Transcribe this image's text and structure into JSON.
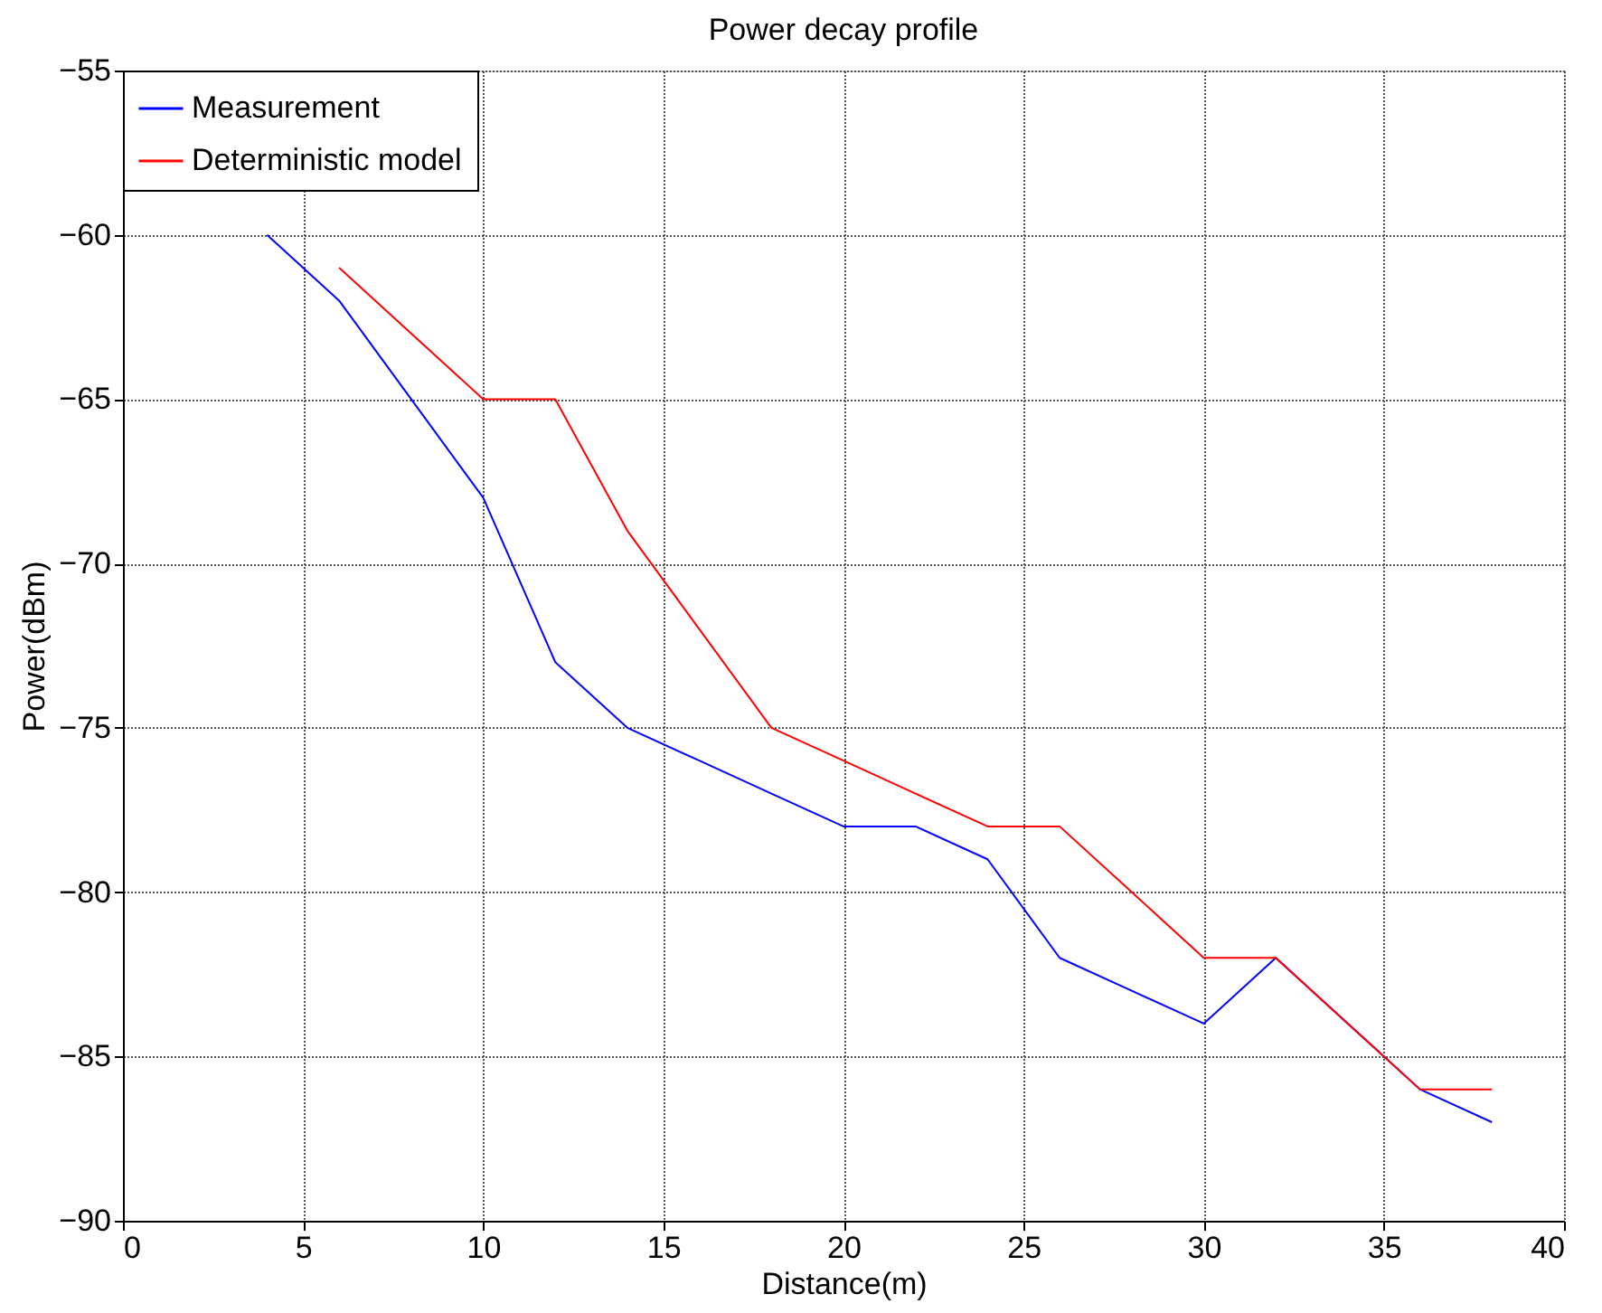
{
  "chart_data": {
    "type": "line",
    "title": "Power decay profile",
    "xlabel": "Distance(m)",
    "ylabel": "Power(dBm)",
    "xlim": [
      0,
      40
    ],
    "xticks": [
      0,
      5,
      10,
      15,
      20,
      25,
      30,
      35,
      40
    ],
    "ylim": [
      -90,
      -55
    ],
    "yticks": [
      -90,
      -85,
      -80,
      -75,
      -70,
      -65,
      -60,
      -55
    ],
    "grid": true,
    "legend": "top left",
    "line_style": "solid",
    "marker": "none",
    "series": [
      {
        "name": "Measurement",
        "color": "#0000ff",
        "x": [
          4,
          6,
          8,
          10,
          12,
          14,
          16,
          18,
          20,
          22,
          24,
          26,
          28,
          30,
          32,
          34,
          36,
          38
        ],
        "values": [
          -60,
          -62,
          -65,
          -68,
          -73,
          -75,
          -76,
          -77,
          -78,
          -78,
          -79,
          -82,
          -83,
          -84,
          -82,
          -84,
          -86,
          -87
        ]
      },
      {
        "name": "Deterministic model",
        "color": "#ff0000",
        "x": [
          6,
          8,
          10,
          12,
          14,
          16,
          18,
          20,
          22,
          24,
          26,
          28,
          30,
          32,
          34,
          36,
          38
        ],
        "values": [
          -61,
          -63,
          -65,
          -65,
          -69,
          -72,
          -75,
          -76,
          -77,
          -78,
          -78,
          -80,
          -82,
          -82,
          -84,
          -86,
          -86
        ]
      }
    ]
  }
}
